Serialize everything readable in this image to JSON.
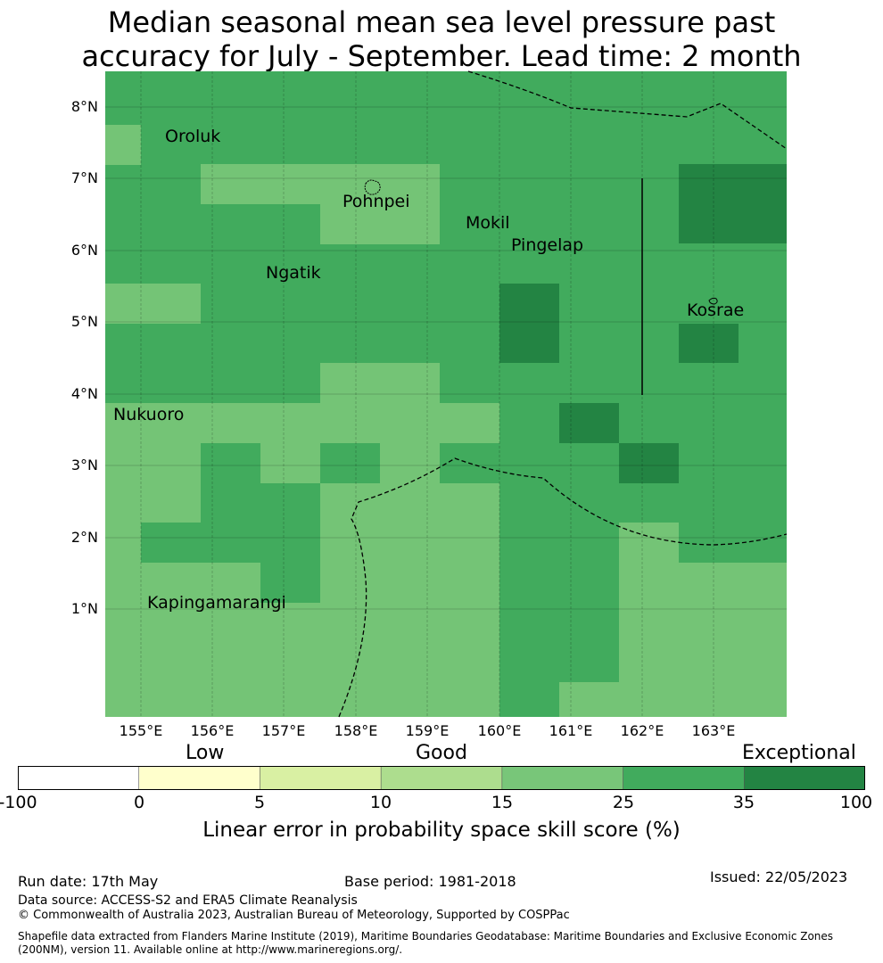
{
  "title": {
    "line1": "Median seasonal mean sea level pressure past",
    "line2": "accuracy for July - September. Lead time: 2 month"
  },
  "map": {
    "lat_labels": [
      "8°N",
      "7°N",
      "6°N",
      "5°N",
      "4°N",
      "3°N",
      "2°N",
      "1°N"
    ],
    "lon_labels": [
      "155°E",
      "156°E",
      "157°E",
      "158°E",
      "159°E",
      "160°E",
      "161°E",
      "162°E",
      "163°E"
    ],
    "places": [
      "Oroluk",
      "Pohnpei",
      "Mokil",
      "Pingelap",
      "Ngatik",
      "Kosrae",
      "Nukuoro",
      "Kapingamarangi"
    ],
    "cell_colors": {
      "c25": "#41ab5d",
      "c15": "#74c476",
      "c35": "#238443"
    }
  },
  "legend": {
    "categories": [
      "Low",
      "Good",
      "Exceptional"
    ],
    "ticks": [
      "-100",
      "0",
      "5",
      "10",
      "15",
      "25",
      "35",
      "100"
    ],
    "colors": [
      "#ffffff",
      "#ffffcc",
      "#d9f0a3",
      "#addd8e",
      "#78c679",
      "#41ab5d",
      "#238443"
    ],
    "label": "Linear error in probability space skill score (%)"
  },
  "footer": {
    "run_date": "Run date: 17th May",
    "base_period": "Base period: 1981-2018",
    "issued": "Issued: 22/05/2023",
    "data_source": "Data source: ACCESS-S2 and ERA5 Climate Reanalysis",
    "copyright": "© Commonwealth of Australia 2023, Australian Bureau of Meteorology, Supported by COSPPac",
    "shapefile1": "Shapefile data extracted from Flanders Marine Institute (2019), Maritime Boundaries Geodatabase: Maritime Boundaries and Exclusive Economic Zones",
    "shapefile2": "(200NM), version 11. Available online at http://www.marineregions.org/."
  }
}
